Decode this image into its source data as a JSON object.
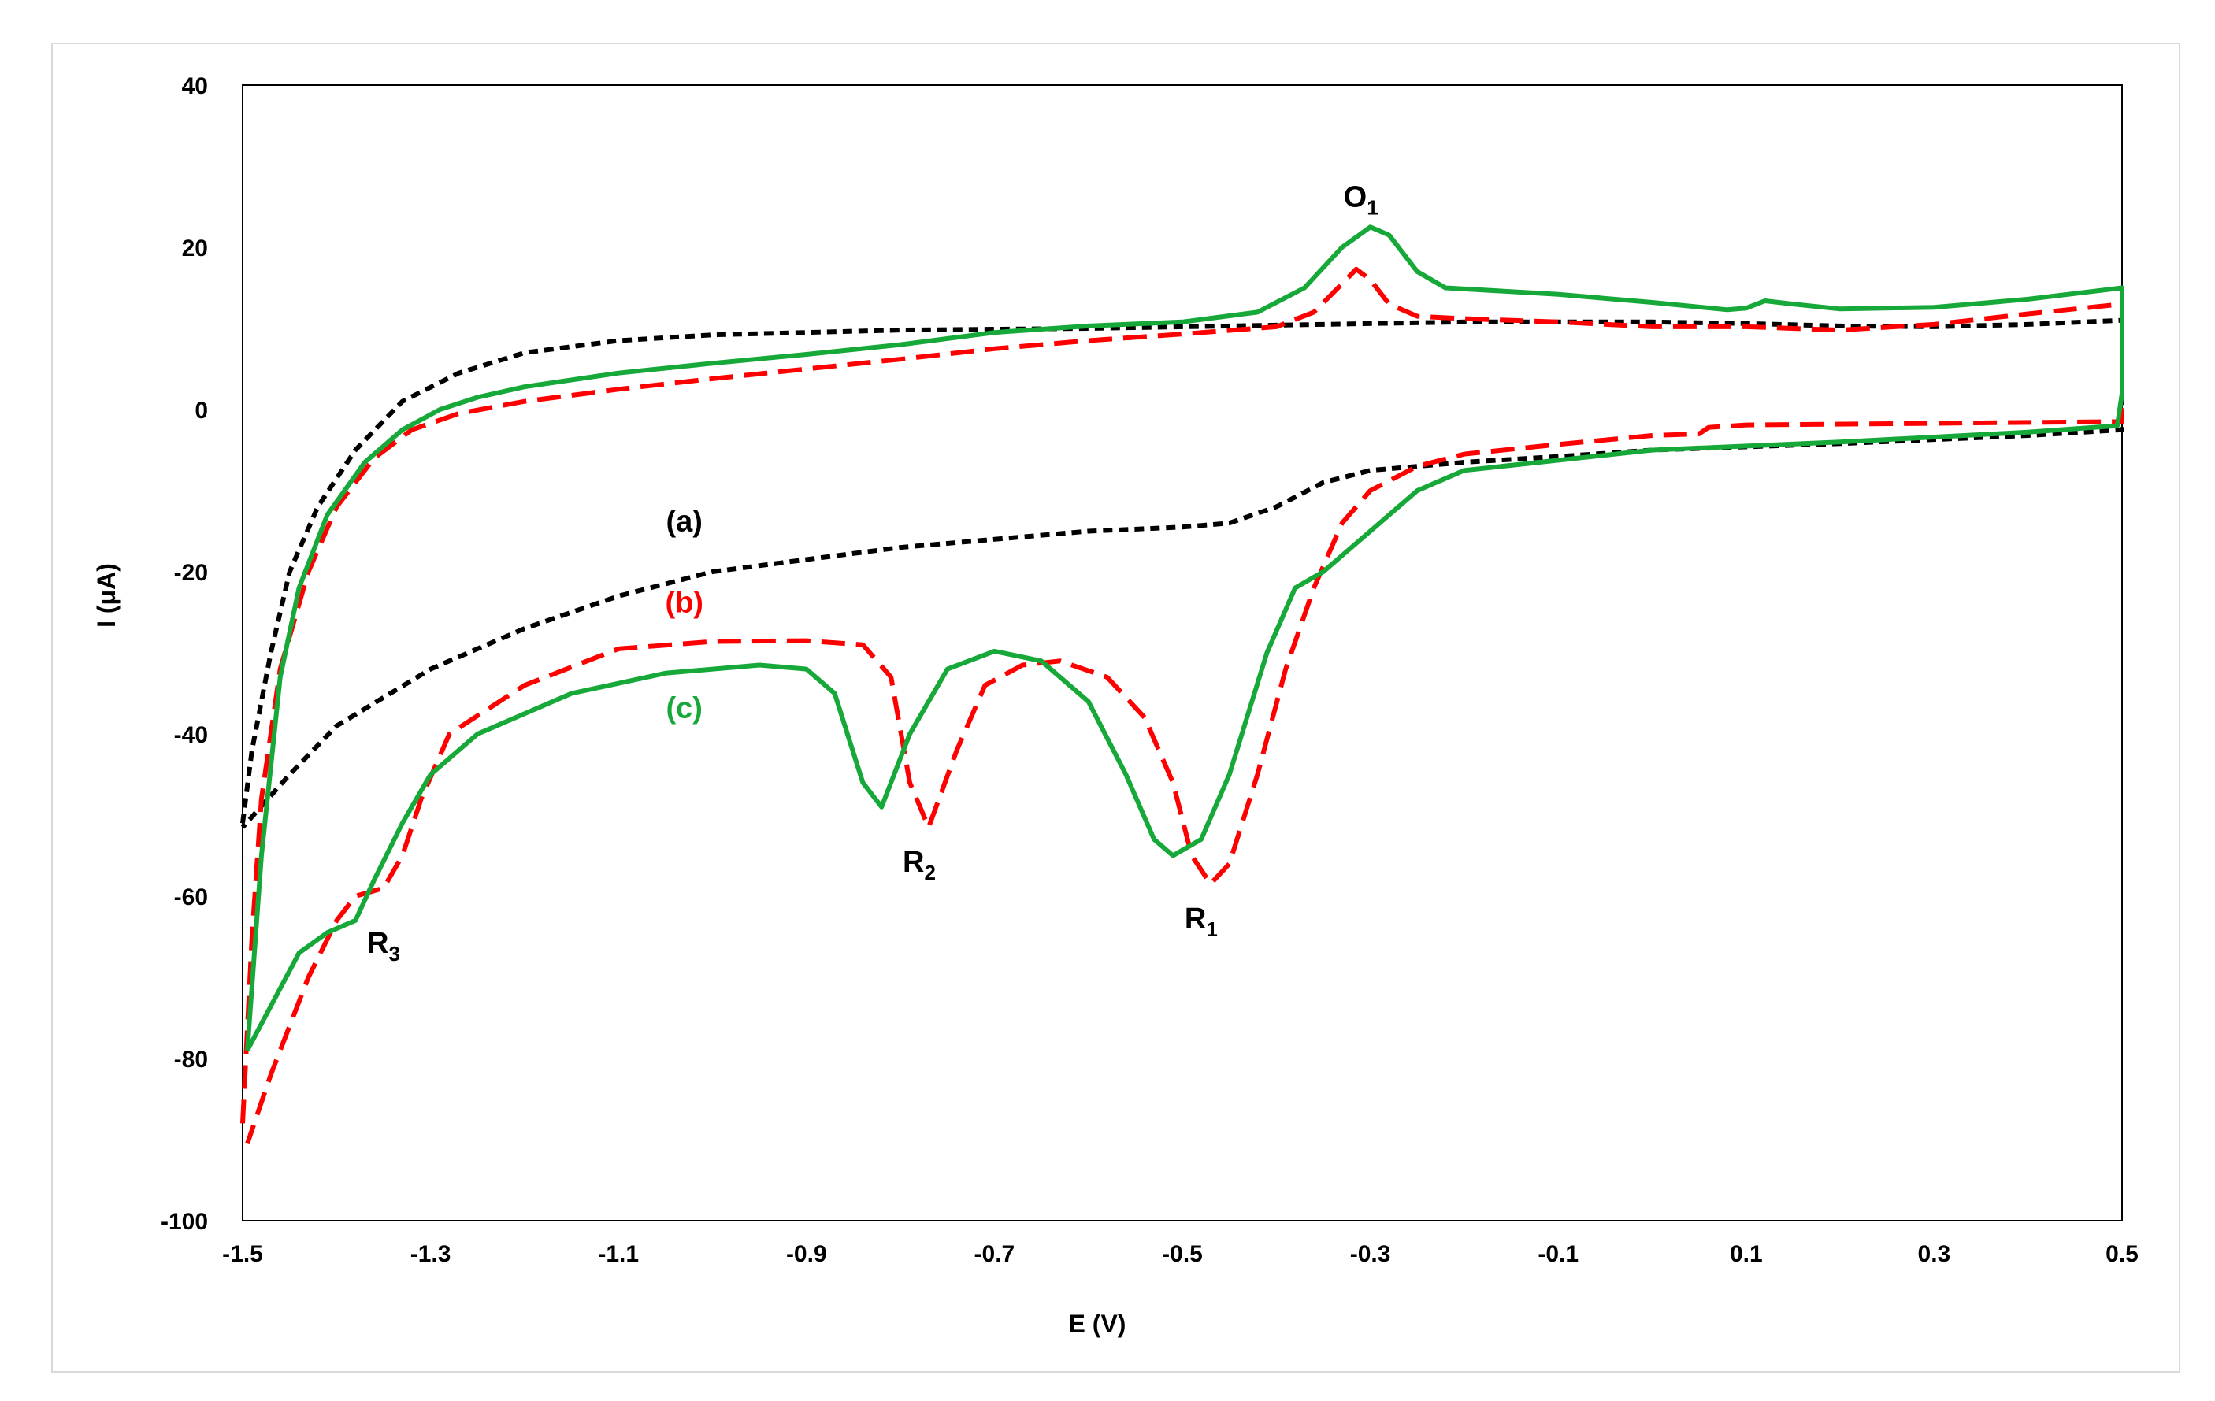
{
  "chart_data": {
    "type": "line",
    "title": "",
    "xlabel": "E (V)",
    "ylabel": "I (μA)",
    "xlim": [
      -1.5,
      0.5
    ],
    "ylim": [
      -100,
      40
    ],
    "xticks": [
      -1.5,
      -1.3,
      -1.1,
      -0.9,
      -0.7,
      -0.5,
      -0.3,
      -0.1,
      0.1,
      0.3,
      0.5
    ],
    "xtick_labels": [
      "-1.5",
      "-1.3",
      "-1.1",
      "-0.9",
      "-0.7",
      "-0.5",
      "-0.3",
      "-0.1",
      "0.1",
      "0.3",
      "0.5"
    ],
    "yticks": [
      -100,
      -80,
      -60,
      -40,
      -20,
      0,
      20,
      40
    ],
    "ytick_labels": [
      "-100",
      "-80",
      "-60",
      "-40",
      "-20",
      "0",
      "20",
      "40"
    ],
    "grid": false,
    "legend": "none",
    "series": [
      {
        "key": "a",
        "color": "#000000",
        "dash": "short",
        "points": [
          [
            -1.5,
            -51
          ],
          [
            -1.49,
            -42
          ],
          [
            -1.47,
            -30
          ],
          [
            -1.45,
            -20
          ],
          [
            -1.42,
            -12
          ],
          [
            -1.38,
            -5
          ],
          [
            -1.33,
            1
          ],
          [
            -1.27,
            4.5
          ],
          [
            -1.2,
            7
          ],
          [
            -1.1,
            8.5
          ],
          [
            -1.0,
            9.2
          ],
          [
            -0.8,
            9.8
          ],
          [
            -0.6,
            10
          ],
          [
            -0.4,
            10.4
          ],
          [
            -0.2,
            10.8
          ],
          [
            0.0,
            10.8
          ],
          [
            0.1,
            10.6
          ],
          [
            0.2,
            10.3
          ],
          [
            0.3,
            10.2
          ],
          [
            0.4,
            10.5
          ],
          [
            0.5,
            11
          ],
          [
            0.5,
            -2.5
          ],
          [
            0.4,
            -3.2
          ],
          [
            0.2,
            -4.2
          ],
          [
            0.0,
            -5
          ],
          [
            -0.1,
            -5.8
          ],
          [
            -0.2,
            -6.5
          ],
          [
            -0.3,
            -7.5
          ],
          [
            -0.35,
            -9
          ],
          [
            -0.4,
            -12
          ],
          [
            -0.45,
            -14
          ],
          [
            -0.5,
            -14.5
          ],
          [
            -0.6,
            -15
          ],
          [
            -0.7,
            -16
          ],
          [
            -0.8,
            -17
          ],
          [
            -0.9,
            -18.5
          ],
          [
            -1.0,
            -20
          ],
          [
            -1.1,
            -23
          ],
          [
            -1.2,
            -27
          ],
          [
            -1.3,
            -32
          ],
          [
            -1.4,
            -39
          ],
          [
            -1.45,
            -45
          ],
          [
            -1.5,
            -51.5
          ]
        ]
      },
      {
        "key": "b",
        "color": "#ff0000",
        "dash": "long",
        "points": [
          [
            -1.5,
            -88
          ],
          [
            -1.49,
            -65
          ],
          [
            -1.48,
            -48
          ],
          [
            -1.46,
            -32
          ],
          [
            -1.43,
            -20
          ],
          [
            -1.4,
            -12
          ],
          [
            -1.36,
            -6
          ],
          [
            -1.32,
            -2.5
          ],
          [
            -1.27,
            -0.5
          ],
          [
            -1.2,
            1
          ],
          [
            -1.1,
            2.5
          ],
          [
            -1.0,
            3.8
          ],
          [
            -0.9,
            5
          ],
          [
            -0.8,
            6.2
          ],
          [
            -0.7,
            7.5
          ],
          [
            -0.6,
            8.5
          ],
          [
            -0.5,
            9.3
          ],
          [
            -0.4,
            10.2
          ],
          [
            -0.36,
            12
          ],
          [
            -0.33,
            15.5
          ],
          [
            -0.315,
            17.3
          ],
          [
            -0.3,
            16
          ],
          [
            -0.28,
            13
          ],
          [
            -0.25,
            11.5
          ],
          [
            -0.2,
            11.2
          ],
          [
            -0.1,
            10.8
          ],
          [
            0.0,
            10.2
          ],
          [
            0.1,
            10.2
          ],
          [
            0.2,
            9.8
          ],
          [
            0.3,
            10.5
          ],
          [
            0.4,
            11.8
          ],
          [
            0.5,
            13
          ],
          [
            0.5,
            -1.5
          ],
          [
            0.3,
            -1.7
          ],
          [
            0.1,
            -1.9
          ],
          [
            0.06,
            -2.2
          ],
          [
            0.05,
            -3
          ],
          [
            0.0,
            -3.2
          ],
          [
            -0.1,
            -4.3
          ],
          [
            -0.2,
            -5.5
          ],
          [
            -0.25,
            -7
          ],
          [
            -0.3,
            -10
          ],
          [
            -0.33,
            -14
          ],
          [
            -0.36,
            -22
          ],
          [
            -0.39,
            -32
          ],
          [
            -0.42,
            -45
          ],
          [
            -0.45,
            -56
          ],
          [
            -0.47,
            -58.5
          ],
          [
            -0.49,
            -55
          ],
          [
            -0.51,
            -46
          ],
          [
            -0.54,
            -38
          ],
          [
            -0.58,
            -33
          ],
          [
            -0.63,
            -31
          ],
          [
            -0.67,
            -31.5
          ],
          [
            -0.71,
            -34
          ],
          [
            -0.74,
            -42
          ],
          [
            -0.77,
            -51.5
          ],
          [
            -0.79,
            -46
          ],
          [
            -0.81,
            -33
          ],
          [
            -0.84,
            -29
          ],
          [
            -0.9,
            -28.5
          ],
          [
            -1.0,
            -28.6
          ],
          [
            -1.1,
            -29.5
          ],
          [
            -1.2,
            -34
          ],
          [
            -1.28,
            -40
          ],
          [
            -1.31,
            -48
          ],
          [
            -1.33,
            -55
          ],
          [
            -1.35,
            -59
          ],
          [
            -1.38,
            -60
          ],
          [
            -1.4,
            -63
          ],
          [
            -1.43,
            -70
          ],
          [
            -1.47,
            -82
          ],
          [
            -1.495,
            -90.5
          ]
        ]
      },
      {
        "key": "c",
        "color": "#16a838",
        "dash": "solid",
        "points": [
          [
            -1.495,
            -79
          ],
          [
            -1.48,
            -55
          ],
          [
            -1.46,
            -33
          ],
          [
            -1.44,
            -22
          ],
          [
            -1.41,
            -13
          ],
          [
            -1.37,
            -6.5
          ],
          [
            -1.33,
            -2.5
          ],
          [
            -1.29,
            0
          ],
          [
            -1.25,
            1.5
          ],
          [
            -1.2,
            2.8
          ],
          [
            -1.1,
            4.5
          ],
          [
            -1.0,
            5.7
          ],
          [
            -0.9,
            6.8
          ],
          [
            -0.8,
            8
          ],
          [
            -0.7,
            9.5
          ],
          [
            -0.6,
            10.3
          ],
          [
            -0.5,
            10.8
          ],
          [
            -0.42,
            12
          ],
          [
            -0.37,
            15
          ],
          [
            -0.33,
            20
          ],
          [
            -0.3,
            22.5
          ],
          [
            -0.28,
            21.5
          ],
          [
            -0.25,
            17
          ],
          [
            -0.22,
            15
          ],
          [
            -0.1,
            14.2
          ],
          [
            0.0,
            13.2
          ],
          [
            0.08,
            12.3
          ],
          [
            0.1,
            12.5
          ],
          [
            0.12,
            13.4
          ],
          [
            0.15,
            13
          ],
          [
            0.2,
            12.4
          ],
          [
            0.3,
            12.6
          ],
          [
            0.4,
            13.6
          ],
          [
            0.5,
            15
          ],
          [
            0.5,
            2
          ],
          [
            0.495,
            -2
          ],
          [
            0.4,
            -2.8
          ],
          [
            0.2,
            -4
          ],
          [
            0.0,
            -5
          ],
          [
            -0.12,
            -6.5
          ],
          [
            -0.2,
            -7.5
          ],
          [
            -0.25,
            -10
          ],
          [
            -0.3,
            -15
          ],
          [
            -0.35,
            -20
          ],
          [
            -0.38,
            -22
          ],
          [
            -0.41,
            -30
          ],
          [
            -0.45,
            -45
          ],
          [
            -0.48,
            -53
          ],
          [
            -0.51,
            -55
          ],
          [
            -0.53,
            -53
          ],
          [
            -0.56,
            -45
          ],
          [
            -0.6,
            -36
          ],
          [
            -0.65,
            -31
          ],
          [
            -0.7,
            -29.8
          ],
          [
            -0.75,
            -32
          ],
          [
            -0.79,
            -40
          ],
          [
            -0.82,
            -49
          ],
          [
            -0.84,
            -46
          ],
          [
            -0.87,
            -35
          ],
          [
            -0.9,
            -32
          ],
          [
            -0.95,
            -31.5
          ],
          [
            -1.05,
            -32.5
          ],
          [
            -1.15,
            -35
          ],
          [
            -1.25,
            -40
          ],
          [
            -1.3,
            -45
          ],
          [
            -1.33,
            -51
          ],
          [
            -1.36,
            -58
          ],
          [
            -1.38,
            -63
          ],
          [
            -1.41,
            -64.5
          ],
          [
            -1.44,
            -67
          ],
          [
            -1.495,
            -79
          ]
        ]
      }
    ],
    "annotations": [
      {
        "name": "label-a",
        "text": "(a)",
        "color": "#000000",
        "x": -1.03,
        "y": -15
      },
      {
        "name": "label-b",
        "text": "(b)",
        "color": "#ff0000",
        "x": -1.03,
        "y": -25
      },
      {
        "name": "label-c",
        "text": "(c)",
        "color": "#16a838",
        "x": -1.03,
        "y": -38
      },
      {
        "name": "peak-O1",
        "text": "O",
        "sub": "1",
        "color": "#000000",
        "x": -0.31,
        "y": 25
      },
      {
        "name": "peak-R2",
        "text": "R",
        "sub": "2",
        "color": "#000000",
        "x": -0.78,
        "y": -57
      },
      {
        "name": "peak-R1",
        "text": "R",
        "sub": "1",
        "color": "#000000",
        "x": -0.48,
        "y": -64
      },
      {
        "name": "peak-R3",
        "text": "R",
        "sub": "3",
        "color": "#000000",
        "x": -1.35,
        "y": -67
      }
    ]
  }
}
